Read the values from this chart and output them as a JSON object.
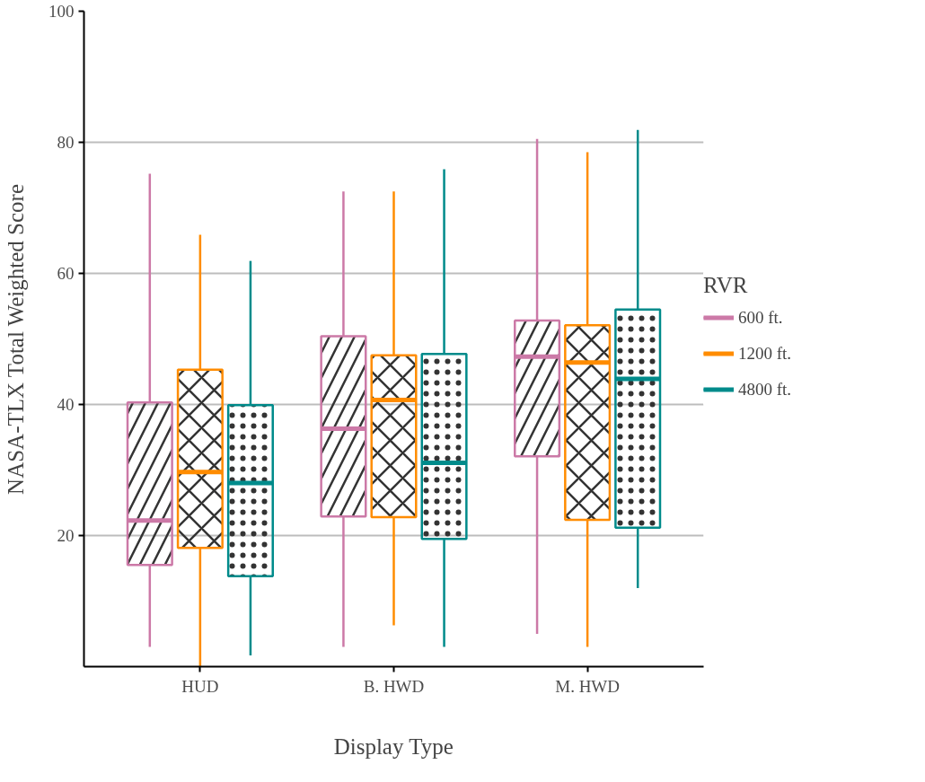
{
  "chart_data": {
    "type": "box",
    "xlabel": "Display Type",
    "ylabel": "NASA-TLX Total Weighted Score",
    "legend_title": "RVR",
    "categories": [
      "HUD",
      "B. HWD",
      "M. HWD"
    ],
    "ylim": [
      0,
      100
    ],
    "yticks": [
      20,
      40,
      60,
      80,
      100
    ],
    "grid": "y",
    "legend": "right",
    "series": [
      {
        "name": "600 ft.",
        "color": "#cc79a7",
        "boxes": [
          {
            "low": 3.0,
            "q1": 15.5,
            "median": 22.3,
            "q3": 40.3,
            "high": 75.2
          },
          {
            "low": 3.0,
            "q1": 22.9,
            "median": 36.3,
            "q3": 50.4,
            "high": 72.5
          },
          {
            "low": 5.0,
            "q1": 32.1,
            "median": 47.3,
            "q3": 52.8,
            "high": 80.5
          }
        ]
      },
      {
        "name": "1200 ft.",
        "color": "#ff8c00",
        "boxes": [
          {
            "low": 0,
            "q1": 18.1,
            "median": 29.7,
            "q3": 45.3,
            "high": 65.9
          },
          {
            "low": 6.3,
            "q1": 22.8,
            "median": 40.7,
            "q3": 47.5,
            "high": 72.5
          },
          {
            "low": 3.0,
            "q1": 22.4,
            "median": 46.4,
            "q3": 52.1,
            "high": 78.5
          }
        ]
      },
      {
        "name": "4800 ft.",
        "color": "#008b8b",
        "boxes": [
          {
            "low": 1.7,
            "q1": 13.8,
            "median": 28.0,
            "q3": 39.9,
            "high": 61.9
          },
          {
            "low": 3.0,
            "q1": 19.5,
            "median": 31.1,
            "q3": 47.7,
            "high": 75.9
          },
          {
            "low": 12.0,
            "q1": 21.2,
            "median": 43.9,
            "q3": 54.5,
            "high": 81.9
          }
        ]
      }
    ]
  }
}
